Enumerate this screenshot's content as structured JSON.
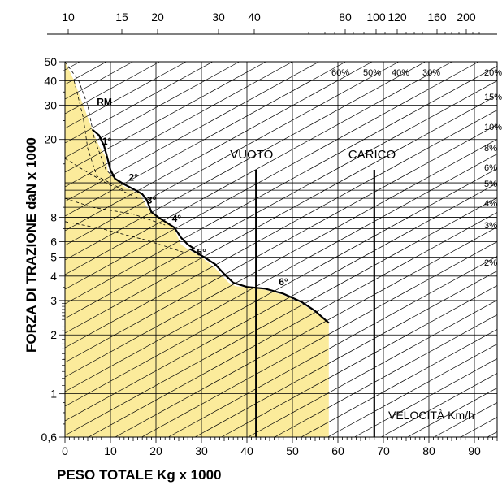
{
  "chart_data": {
    "type": "line",
    "title": "",
    "xlabel": "PESO TOTALE Kg x 1000",
    "ylabel": "FORZA DI TRAZIONE daN x 1000",
    "x_range": [
      0,
      95
    ],
    "x_ticks": [
      0,
      10,
      20,
      30,
      40,
      50,
      60,
      70,
      80,
      90
    ],
    "y_scale": "log",
    "y_range": [
      0.6,
      50
    ],
    "y_ticks": [
      "0,6",
      "1",
      "2",
      "3",
      "4",
      "5",
      "6",
      "8",
      "20",
      "30",
      "40",
      "50"
    ],
    "y_tick_values": [
      0.6,
      1,
      2,
      3,
      4,
      5,
      6,
      8,
      20,
      30,
      40,
      50
    ],
    "top_axis_label": "VELOCITÀ Km/h",
    "top_axis_ticks": [
      "10",
      "15",
      "20",
      "30",
      "40",
      "80",
      "100",
      "120",
      "160",
      "200"
    ],
    "grade_lines": [
      "60%",
      "50%",
      "40%",
      "30%",
      "20%",
      "15%",
      "10%",
      "8%",
      "6%",
      "5%",
      "4%",
      "3%",
      "2%"
    ],
    "gears": [
      "RM",
      "1°",
      "2°",
      "3°",
      "4°",
      "5°",
      "6°"
    ],
    "markers": [
      {
        "label": "VUOTO",
        "x": 42
      },
      {
        "label": "CARICO",
        "x": 68
      }
    ],
    "traction_envelope": {
      "x": [
        0,
        2,
        4,
        6,
        7.5,
        8.8,
        9.5,
        11,
        13,
        16.5,
        18,
        19.5,
        21.5,
        24,
        25.5,
        27.5,
        30,
        33,
        36,
        37.5,
        40,
        44,
        48,
        52,
        55,
        58
      ],
      "y": [
        50,
        40,
        30,
        22.5,
        18.5,
        16.5,
        13.5,
        12.5,
        11.5,
        10.5,
        9,
        8.2,
        7.8,
        7,
        5.8,
        5.4,
        5,
        4.4,
        3.7,
        3.55,
        3.5,
        3.4,
        3.2,
        2.9,
        2.6,
        2.3
      ]
    }
  },
  "colors": {
    "fill": "#fbeb9b",
    "line": "#000000",
    "background": "#ffffff"
  }
}
